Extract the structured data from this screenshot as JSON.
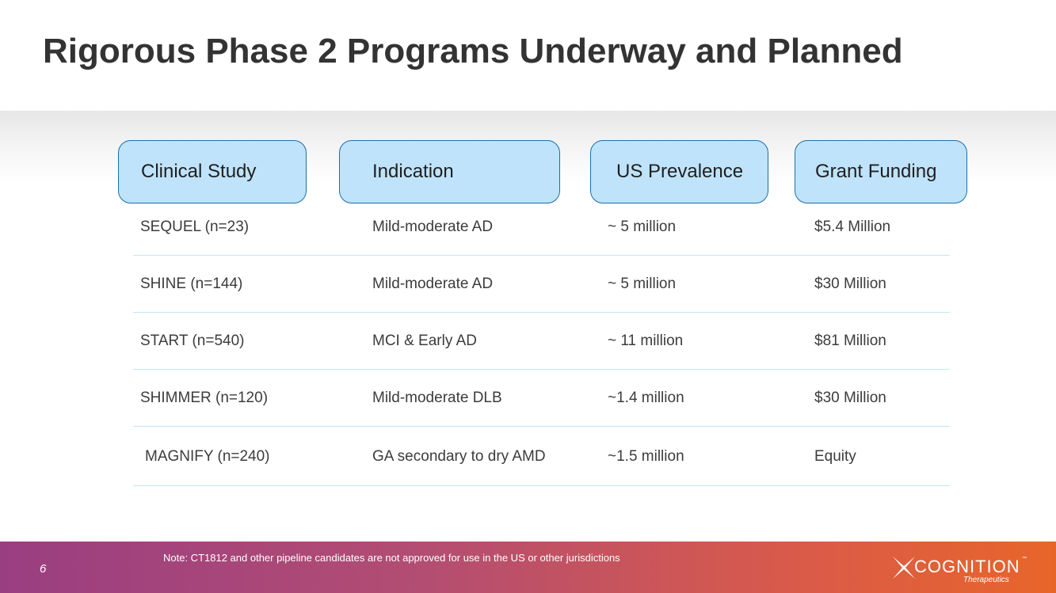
{
  "slide": {
    "title": "Rigorous Phase 2 Programs Underway and Planned",
    "page_number": "6"
  },
  "table": {
    "headers": [
      "Clinical Study",
      "Indication",
      "US Prevalence",
      "Grant Funding"
    ],
    "rows": [
      [
        "SEQUEL (n=23)",
        "Mild-moderate AD",
        "~ 5 million",
        "$5.4 Million"
      ],
      [
        "SHINE (n=144)",
        "Mild-moderate AD",
        "~ 5 million",
        "$30 Million"
      ],
      [
        "START (n=540)",
        "MCI & Early AD",
        "~ 11 million",
        "$81 Million"
      ],
      [
        "SHIMMER (n=120)",
        "Mild-moderate DLB",
        "~1.4 million",
        "$30 Million"
      ],
      [
        "MAGNIFY (n=240)",
        "GA secondary to dry AMD",
        "~1.5 million",
        "Equity"
      ]
    ]
  },
  "footer": {
    "note": "Note: CT1812 and other pipeline candidates are not approved for use in the US or other jurisdictions",
    "logo_name": "COGNITION",
    "logo_tm": "™",
    "logo_sub": "Therapeutics"
  },
  "colors": {
    "header_fill": "#bfe3fb",
    "header_border": "#1c6fa8",
    "row_rule": "#c3e5f5",
    "footer_start": "#9a3e82",
    "footer_end": "#e8652a"
  }
}
